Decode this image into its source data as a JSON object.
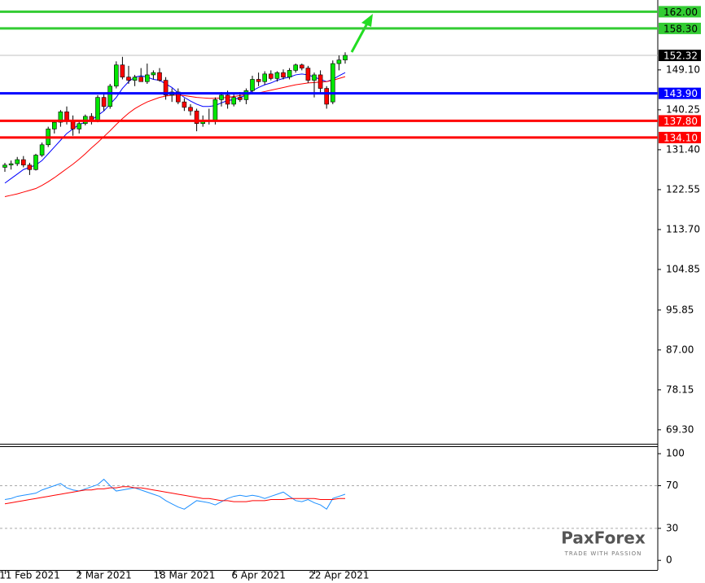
{
  "chart_data": [
    {
      "type": "candlestick",
      "categories": [
        null,
        null,
        null,
        null,
        "11 Feb 2021",
        null,
        null,
        null,
        null,
        null,
        null,
        null,
        null,
        null,
        null,
        null,
        "2 Mar 2021",
        null,
        null,
        null,
        null,
        null,
        null,
        null,
        null,
        null,
        null,
        null,
        null,
        "18 Mar 2021",
        null,
        null,
        null,
        null,
        null,
        null,
        null,
        null,
        null,
        null,
        null,
        "6 Apr 2021",
        null,
        null,
        null,
        null,
        null,
        null,
        null,
        null,
        null,
        null,
        null,
        null,
        "22 Apr 2021",
        null
      ],
      "open": [
        127.5,
        128.0,
        128.3,
        129.2,
        128.0,
        127.0,
        130.2,
        132.5,
        136.0,
        137.5,
        139.8,
        137.8,
        136.0,
        137.2,
        138.8,
        137.8,
        143.0,
        141.0,
        145.5,
        150.2,
        147.5,
        146.8,
        147.5,
        146.5,
        148.0,
        148.5,
        146.8,
        143.5,
        144.2,
        142.0,
        140.8,
        140.0,
        137.2,
        138.0,
        137.8,
        142.5,
        143.5,
        141.5,
        143.0,
        142.5,
        144.5,
        147.0,
        146.5,
        148.2,
        147.2,
        148.5,
        147.5,
        149.0,
        150.2,
        149.5,
        146.8,
        148.0,
        145.0,
        142.0,
        150.5,
        151.3
      ],
      "high": [
        128.5,
        129.0,
        129.8,
        130.0,
        128.5,
        130.5,
        133.0,
        136.5,
        138.0,
        140.2,
        141.0,
        139.0,
        137.8,
        139.2,
        139.5,
        143.5,
        144.0,
        146.0,
        151.0,
        152.0,
        150.0,
        148.0,
        149.5,
        150.5,
        149.0,
        149.5,
        147.5,
        145.0,
        145.0,
        142.8,
        141.5,
        140.5,
        139.0,
        140.5,
        143.0,
        144.2,
        144.5,
        143.8,
        144.2,
        145.0,
        147.8,
        148.5,
        148.8,
        149.0,
        148.8,
        149.2,
        149.5,
        150.5,
        150.5,
        150.0,
        148.5,
        149.0,
        145.5,
        151.2,
        152.3,
        153.0
      ],
      "low": [
        126.5,
        127.0,
        127.8,
        127.5,
        125.8,
        126.8,
        129.8,
        132.0,
        135.0,
        136.5,
        137.0,
        134.5,
        135.0,
        136.8,
        137.0,
        137.5,
        140.0,
        140.5,
        145.0,
        147.0,
        146.0,
        145.5,
        146.5,
        146.0,
        147.0,
        146.5,
        142.5,
        142.0,
        141.5,
        140.0,
        139.0,
        135.5,
        136.5,
        137.0,
        137.0,
        141.0,
        140.5,
        141.0,
        142.0,
        141.5,
        144.0,
        145.5,
        145.8,
        146.8,
        146.5,
        147.0,
        147.0,
        148.5,
        149.0,
        146.2,
        143.0,
        144.0,
        140.5,
        141.5,
        149.0,
        150.5
      ],
      "close": [
        128.0,
        128.3,
        129.2,
        128.0,
        127.0,
        130.2,
        132.5,
        136.0,
        137.5,
        139.8,
        137.8,
        136.0,
        137.2,
        138.8,
        137.8,
        143.0,
        141.0,
        145.5,
        150.2,
        147.5,
        146.8,
        147.5,
        146.5,
        148.0,
        148.5,
        146.8,
        143.5,
        144.2,
        142.0,
        140.8,
        140.0,
        137.2,
        138.0,
        137.8,
        142.5,
        143.5,
        141.5,
        143.0,
        142.5,
        144.5,
        147.0,
        146.5,
        148.2,
        147.2,
        148.5,
        147.5,
        149.0,
        150.2,
        149.5,
        146.8,
        148.0,
        145.0,
        141.5,
        150.5,
        151.3,
        152.32
      ],
      "up_color": "#00e600",
      "down_color": "#ff0000",
      "moving_averages": [
        {
          "color": "#0000ff",
          "values": [
            124,
            125,
            126,
            127,
            127.5,
            128,
            129,
            130.5,
            132,
            133.5,
            135,
            136,
            137,
            137.5,
            138,
            139,
            140,
            141.5,
            143,
            145,
            146.5,
            147.5,
            147.8,
            147.5,
            147,
            146.8,
            146,
            145.2,
            144,
            143,
            142.2,
            141.5,
            141,
            141,
            141.2,
            141.8,
            142.3,
            142.5,
            143,
            143.5,
            144.5,
            145.2,
            145.8,
            146.2,
            146.8,
            147.2,
            147.5,
            148,
            148.2,
            148,
            147.5,
            147,
            146.5,
            147,
            147.8,
            148.5
          ]
        },
        {
          "color": "#ff0000",
          "values": [
            121,
            121.3,
            121.6,
            122,
            122.4,
            122.8,
            123.5,
            124.3,
            125.2,
            126.2,
            127.2,
            128.2,
            129.3,
            130.5,
            131.8,
            133,
            134.3,
            135.6,
            137,
            138.3,
            139.5,
            140.5,
            141.3,
            142,
            142.5,
            143,
            143.3,
            143.5,
            143.5,
            143.4,
            143.2,
            143,
            142.9,
            142.8,
            142.8,
            142.9,
            143,
            143.2,
            143.4,
            143.6,
            143.8,
            144,
            144.3,
            144.6,
            144.9,
            145.2,
            145.5,
            145.8,
            146,
            146.2,
            146.3,
            146.4,
            146.5,
            146.8,
            147.2,
            147.6
          ]
        }
      ],
      "levels": [
        {
          "value": 162,
          "label": "162.00",
          "color": "#33cc33"
        },
        {
          "value": 158.3,
          "label": "158.30",
          "color": "#33cc33"
        },
        {
          "value": 143.9,
          "label": "143.90",
          "color": "#0000ff"
        },
        {
          "value": 137.8,
          "label": "137.80",
          "color": "#ff0000"
        },
        {
          "value": 134.1,
          "label": "134.10",
          "color": "#ff0000"
        }
      ],
      "current_price": 152.32,
      "ylim": [
        66.2,
        164.6
      ],
      "yticks": [
        {
          "value": 149.1,
          "label": "149.10"
        },
        {
          "value": 140.25,
          "label": "140.25"
        },
        {
          "value": 131.4,
          "label": "131.40"
        },
        {
          "value": 122.55,
          "label": "122.55"
        },
        {
          "value": 113.7,
          "label": "113.70"
        },
        {
          "value": 104.85,
          "label": "104.85"
        },
        {
          "value": 95.85,
          "label": "95.85"
        },
        {
          "value": 87,
          "label": "87.00"
        },
        {
          "value": 78.15,
          "label": "78.15"
        },
        {
          "value": 69.3,
          "label": "69.30"
        }
      ]
    },
    {
      "type": "line",
      "series": [
        {
          "color": "#1e90ff",
          "values": [
            57,
            58,
            60,
            61,
            62,
            63,
            66,
            68,
            70,
            72,
            68,
            66,
            65,
            67,
            69,
            71,
            76,
            70,
            65,
            66,
            67,
            68,
            66,
            64,
            62,
            60,
            56,
            53,
            50,
            48,
            52,
            56,
            55,
            54,
            52,
            55,
            58,
            60,
            61,
            60,
            61,
            60,
            58,
            60,
            62,
            64,
            60,
            56,
            55,
            57,
            54,
            52,
            48,
            58,
            60,
            62
          ]
        },
        {
          "color": "#ff0000",
          "values": [
            53,
            54,
            55,
            56,
            57,
            58,
            59,
            60,
            61,
            62,
            63,
            64,
            65,
            66,
            66,
            67,
            67,
            68,
            68,
            69,
            69,
            68,
            68,
            67,
            66,
            65,
            64,
            63,
            62,
            61,
            60,
            59,
            58,
            58,
            57,
            56,
            56,
            55,
            55,
            55,
            56,
            56,
            56,
            57,
            57,
            57,
            58,
            58,
            58,
            58,
            58,
            57,
            57,
            57,
            58,
            58
          ]
        }
      ],
      "levels": [
        70,
        30
      ],
      "ylim": [
        -9,
        107
      ],
      "yticks": [
        100,
        70,
        30,
        0
      ]
    }
  ],
  "logo": "PaxForex",
  "tagline": "TRADE WITH PASSION"
}
